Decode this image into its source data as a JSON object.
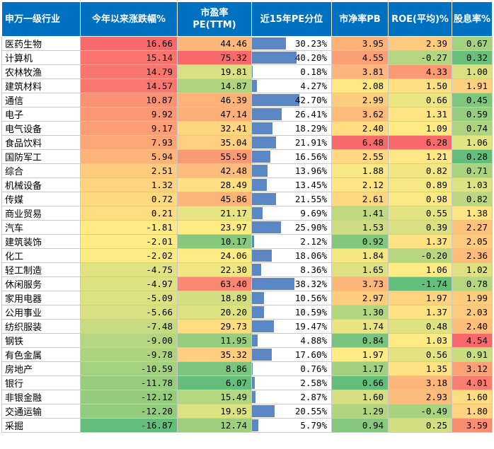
{
  "headers": [
    "申万一级行业",
    "今年以来涨跌幅%",
    "市盈率\nPE(TTM)",
    "近15年PE分位",
    "市净率PB",
    "ROE(平均)%",
    "股息率%"
  ],
  "chart_data": {
    "type": "table",
    "columns": [
      "申万一级行业",
      "今年以来涨跌幅%",
      "市盈率PE(TTM)",
      "近15年PE分位",
      "市净率PB",
      "ROE(平均)%",
      "股息率%"
    ],
    "rows": [
      [
        "医药生物",
        "16.66",
        "44.46",
        "30.23%",
        "3.95",
        "2.39",
        "0.67"
      ],
      [
        "计算机",
        "15.14",
        "75.32",
        "40.20%",
        "4.55",
        "-0.27",
        "0.32"
      ],
      [
        "农林牧渔",
        "14.79",
        "19.81",
        "0.18%",
        "3.81",
        "4.33",
        "1.00"
      ],
      [
        "建筑材料",
        "14.57",
        "14.87",
        "4.27%",
        "2.08",
        "1.50",
        "1.91"
      ],
      [
        "通信",
        "10.87",
        "46.39",
        "42.70%",
        "2.99",
        "0.66",
        "0.45"
      ],
      [
        "电子",
        "9.92",
        "47.14",
        "26.41%",
        "3.62",
        "1.31",
        "0.59"
      ],
      [
        "电气设备",
        "9.17",
        "32.41",
        "18.29%",
        "2.40",
        "1.09",
        "0.74"
      ],
      [
        "食品饮料",
        "7.93",
        "35.04",
        "21.91%",
        "6.48",
        "6.28",
        "1.06"
      ],
      [
        "国防军工",
        "5.94",
        "55.59",
        "16.56%",
        "2.55",
        "1.21",
        "0.28"
      ],
      [
        "综合",
        "2.51",
        "42.48",
        "13.96%",
        "1.88",
        "0.82",
        "0.71"
      ],
      [
        "机械设备",
        "1.32",
        "28.49",
        "13.45%",
        "2.12",
        "0.89",
        "1.03"
      ],
      [
        "传媒",
        "0.72",
        "45.86",
        "21.55%",
        "2.61",
        "0.98",
        "0.82"
      ],
      [
        "商业贸易",
        "0.21",
        "21.17",
        "9.69%",
        "1.41",
        "0.55",
        "1.38"
      ],
      [
        "汽车",
        "-1.81",
        "23.97",
        "25.90%",
        "1.53",
        "0.39",
        "2.27"
      ],
      [
        "建筑装饰",
        "-2.01",
        "10.17",
        "2.12%",
        "0.92",
        "1.37",
        "2.05"
      ],
      [
        "化工",
        "-2.02",
        "24.06",
        "18.06%",
        "1.84",
        "-0.20",
        "2.36"
      ],
      [
        "轻工制造",
        "-4.75",
        "22.30",
        "8.36%",
        "1.65",
        "1.06",
        "1.02"
      ],
      [
        "休闲服务",
        "-4.97",
        "63.40",
        "38.32%",
        "3.73",
        "-1.74",
        "0.78"
      ],
      [
        "家用电器",
        "-5.09",
        "18.89",
        "10.56%",
        "2.97",
        "1.97",
        "1.99"
      ],
      [
        "公用事业",
        "-5.66",
        "20.20",
        "10.59%",
        "1.30",
        "1.37",
        "2.03"
      ],
      [
        "纺织服装",
        "-7.48",
        "29.73",
        "19.47%",
        "1.74",
        "0.48",
        "2.40"
      ],
      [
        "钢铁",
        "-9.00",
        "11.95",
        "4.88%",
        "0.84",
        "1.03",
        "4.54"
      ],
      [
        "有色金属",
        "-9.78",
        "35.32",
        "17.60%",
        "1.97",
        "0.56",
        "0.91"
      ],
      [
        "房地产",
        "-10.59",
        "8.86",
        "0.76%",
        "1.17",
        "1.35",
        "3.12"
      ],
      [
        "银行",
        "-11.78",
        "6.07",
        "2.58%",
        "0.66",
        "3.18",
        "4.01"
      ],
      [
        "非银金融",
        "-12.12",
        "15.49",
        "2.87%",
        "1.60",
        "2.93",
        "1.60"
      ],
      [
        "交通运输",
        "-12.20",
        "19.95",
        "20.55%",
        "1.29",
        "-0.49",
        "1.80"
      ],
      [
        "采掘",
        "-16.87",
        "12.74",
        "5.79%",
        "0.94",
        "0.25",
        "3.59"
      ]
    ]
  },
  "colors": {
    "header_bg": "#0070c0",
    "header_text": "#ffffff",
    "scale_low": "#63be7b",
    "scale_mid": "#ffeb84",
    "scale_high": "#f8696b",
    "databar": "#5b87c5"
  }
}
